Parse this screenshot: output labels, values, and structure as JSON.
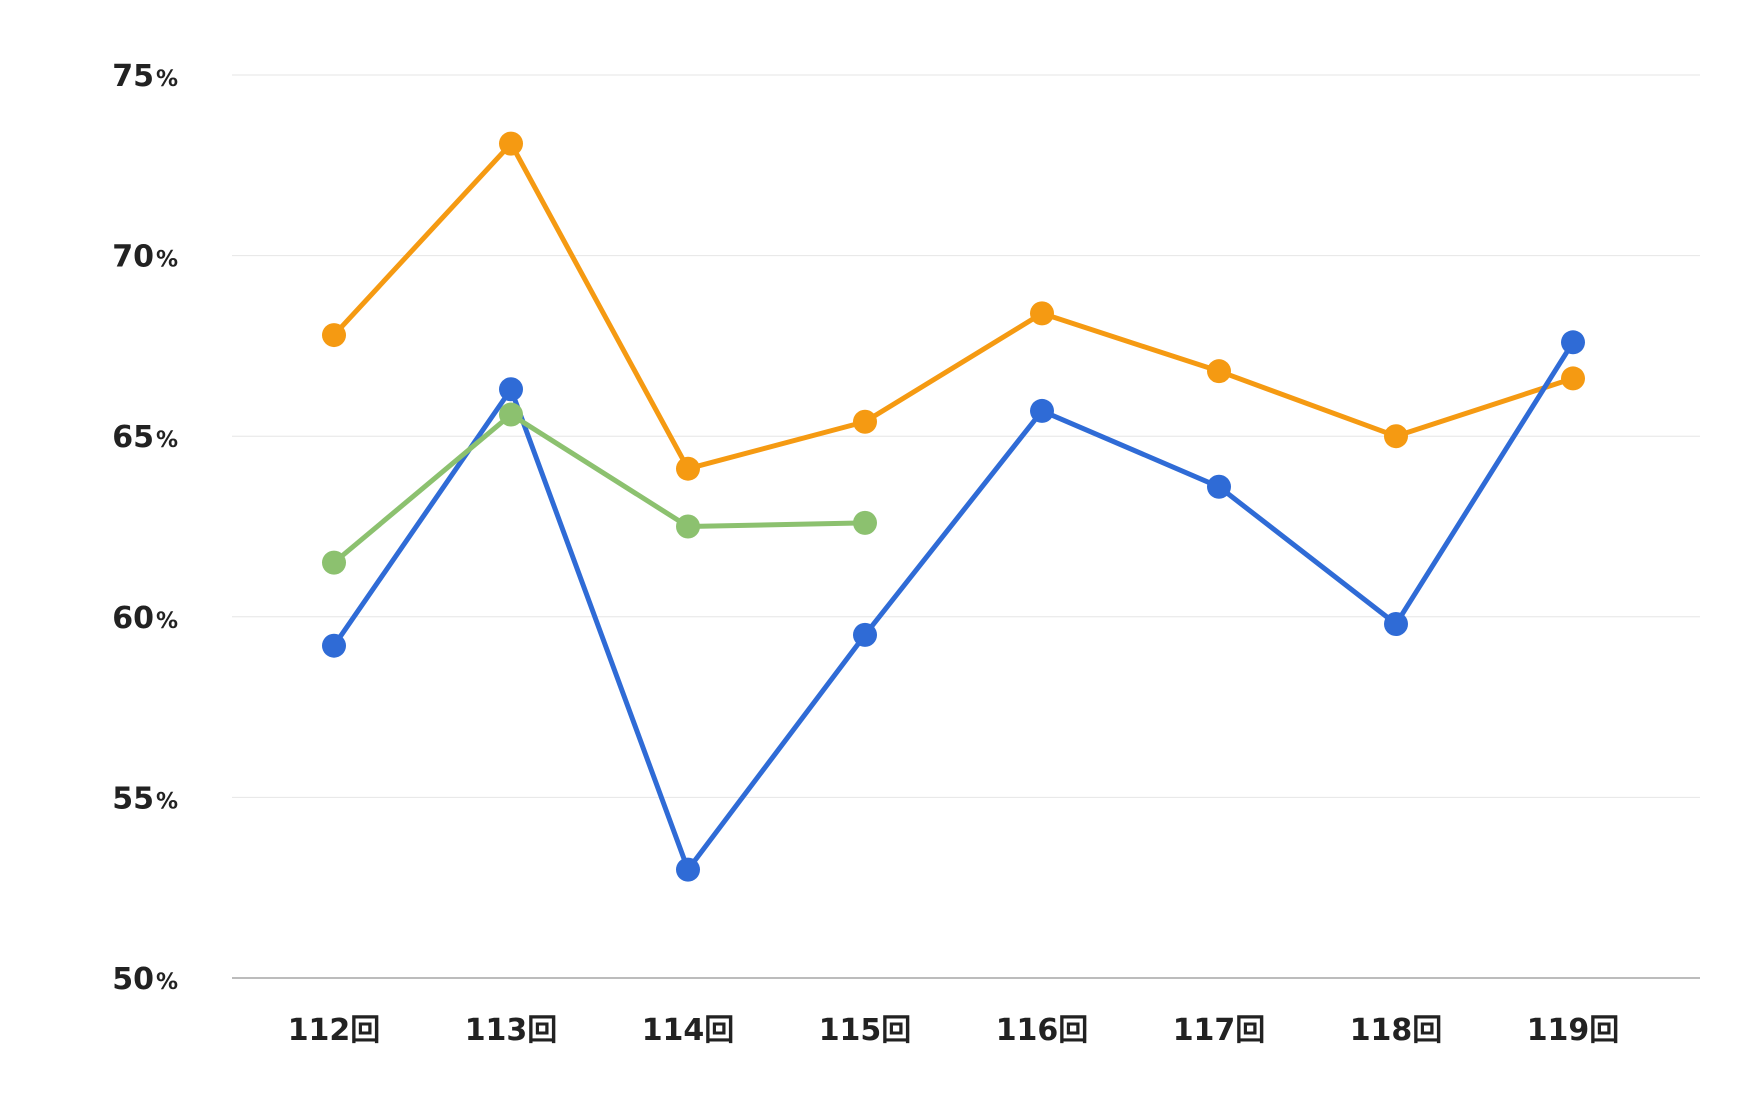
{
  "chart_data": {
    "type": "line",
    "categories": [
      "112回",
      "113回",
      "114回",
      "115回",
      "116回",
      "117回",
      "118回",
      "119回"
    ],
    "ylim": [
      50,
      75
    ],
    "yticks": [
      50,
      55,
      60,
      65,
      70,
      75
    ],
    "ytick_suffix": "%",
    "grid": true,
    "legend": "none",
    "series": [
      {
        "color": "#f59a12",
        "values": [
          67.8,
          73.1,
          64.1,
          65.4,
          68.4,
          66.8,
          65.0,
          66.6
        ]
      },
      {
        "color": "#2f6bd6",
        "values": [
          59.2,
          66.3,
          53.0,
          59.5,
          65.7,
          63.6,
          59.8,
          67.6
        ]
      },
      {
        "color": "#8cc16f",
        "values": [
          61.5,
          65.6,
          62.5,
          62.6,
          null,
          null,
          null,
          null
        ]
      }
    ]
  }
}
